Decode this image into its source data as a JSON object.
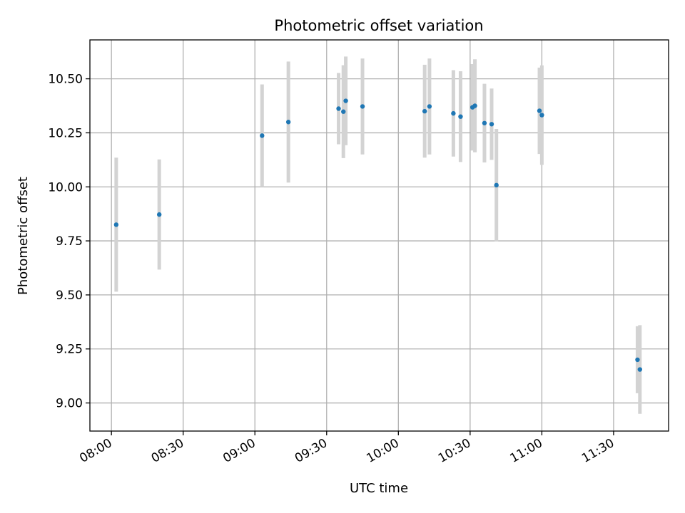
{
  "chart_data": {
    "type": "scatter",
    "title": "Photometric offset variation",
    "xlabel": "UTC time",
    "ylabel": "Photometric offset",
    "x_ticks": [
      "08:00",
      "08:30",
      "09:00",
      "09:30",
      "10:00",
      "10:30",
      "11:00",
      "11:30"
    ],
    "y_ticks": [
      "9.00",
      "9.25",
      "9.50",
      "9.75",
      "10.00",
      "10.25",
      "10.50"
    ],
    "xlim": [
      "07:51",
      "11:53"
    ],
    "ylim": [
      8.87,
      10.68
    ],
    "grid": true,
    "colors": {
      "points": "#1f77b4",
      "errorbars": "#d3d3d3",
      "grid": "#b0b0b0"
    },
    "points": [
      {
        "t": "08:02",
        "y": 9.825,
        "err": 0.31
      },
      {
        "t": "08:20",
        "y": 9.872,
        "err": 0.255
      },
      {
        "t": "09:03",
        "y": 10.237,
        "err": 0.237
      },
      {
        "t": "09:14",
        "y": 10.3,
        "err": 0.28
      },
      {
        "t": "09:35",
        "y": 10.362,
        "err": 0.165
      },
      {
        "t": "09:37",
        "y": 10.348,
        "err": 0.215
      },
      {
        "t": "09:38",
        "y": 10.398,
        "err": 0.205
      },
      {
        "t": "09:45",
        "y": 10.372,
        "err": 0.222
      },
      {
        "t": "10:11",
        "y": 10.35,
        "err": 0.215
      },
      {
        "t": "10:13",
        "y": 10.372,
        "err": 0.222
      },
      {
        "t": "10:23",
        "y": 10.34,
        "err": 0.2
      },
      {
        "t": "10:26",
        "y": 10.325,
        "err": 0.21
      },
      {
        "t": "10:31",
        "y": 10.368,
        "err": 0.2
      },
      {
        "t": "10:32",
        "y": 10.375,
        "err": 0.215
      },
      {
        "t": "10:36",
        "y": 10.295,
        "err": 0.182
      },
      {
        "t": "10:39",
        "y": 10.29,
        "err": 0.165
      },
      {
        "t": "10:41",
        "y": 10.008,
        "err": 0.26
      },
      {
        "t": "10:59",
        "y": 10.352,
        "err": 0.2
      },
      {
        "t": "11:00",
        "y": 10.332,
        "err": 0.23
      },
      {
        "t": "11:40",
        "y": 9.2,
        "err": 0.155
      },
      {
        "t": "11:41",
        "y": 9.155,
        "err": 0.205
      }
    ]
  }
}
